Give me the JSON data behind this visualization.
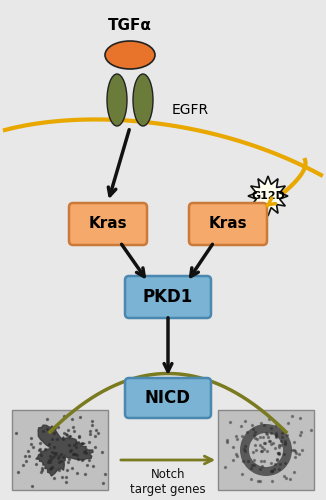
{
  "background_color": "#e8e8e8",
  "tgfa_label": "TGFα",
  "egfr_label": "EGFR",
  "kras_label": "Kras",
  "kras_mut_label": "Kras",
  "g12d_label": "G12D",
  "pkd1_label": "PKD1",
  "nicd_label": "NICD",
  "notch_label": "Notch\ntarget genes",
  "box_orange_color": "#f5a96a",
  "box_orange_edge": "#cc7a3a",
  "box_blue_color": "#7ab3d4",
  "box_blue_edge": "#4a88b0",
  "receptor_color": "#6b7c3a",
  "ligand_color": "#e8732a",
  "membrane_color": "#e8a800",
  "arrow_color": "#111111",
  "arc_color": "#7a7a20",
  "star_color": "#fffff0",
  "star_edge": "#111111",
  "notch_arrow_color": "#7a7a20"
}
